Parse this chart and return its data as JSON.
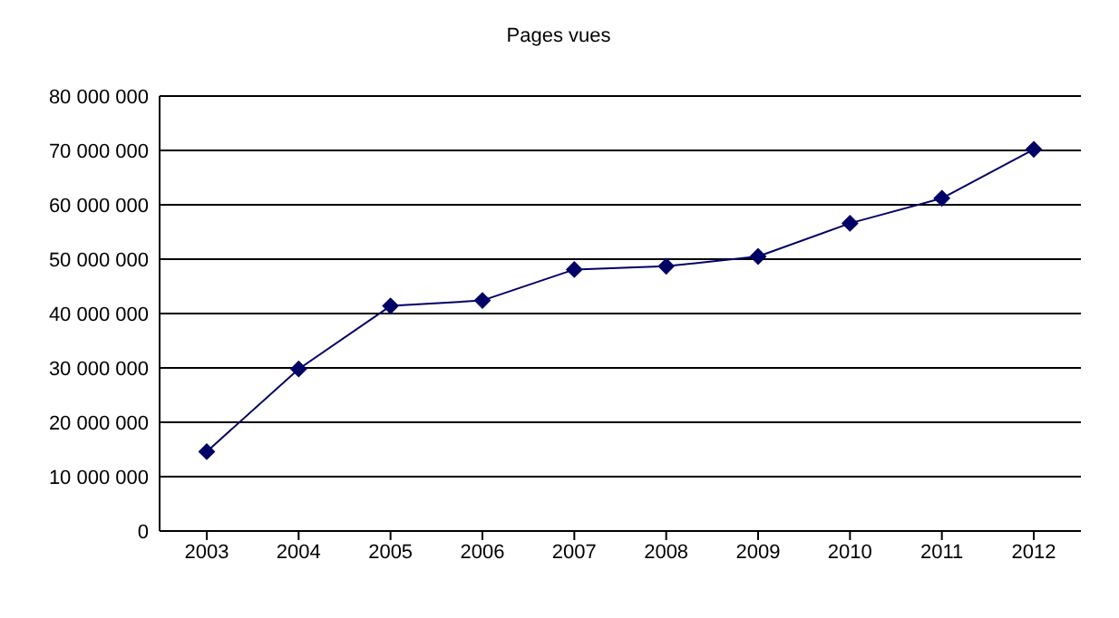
{
  "chart_data": {
    "type": "line",
    "title": "Pages vues",
    "categories": [
      "2003",
      "2004",
      "2005",
      "2006",
      "2007",
      "2008",
      "2009",
      "2010",
      "2011",
      "2012"
    ],
    "series": [
      {
        "color": "#000066",
        "values": [
          14600000,
          29800000,
          41400000,
          42400000,
          48100000,
          48700000,
          50500000,
          56600000,
          61200000,
          70200000
        ]
      }
    ],
    "ylim": [
      0,
      80000000
    ],
    "yticks": [
      {
        "value": 0,
        "label": "0"
      },
      {
        "value": 10000000,
        "label": "10 000 000"
      },
      {
        "value": 20000000,
        "label": "20 000 000"
      },
      {
        "value": 30000000,
        "label": "30 000 000"
      },
      {
        "value": 40000000,
        "label": "40 000 000"
      },
      {
        "value": 50000000,
        "label": "50 000 000"
      },
      {
        "value": 60000000,
        "label": "60 000 000"
      },
      {
        "value": 70000000,
        "label": "70 000 000"
      },
      {
        "value": 80000000,
        "label": "80 000 000"
      }
    ],
    "grid": "y",
    "marker": "diamond",
    "line_style": "solid",
    "legend": false
  }
}
